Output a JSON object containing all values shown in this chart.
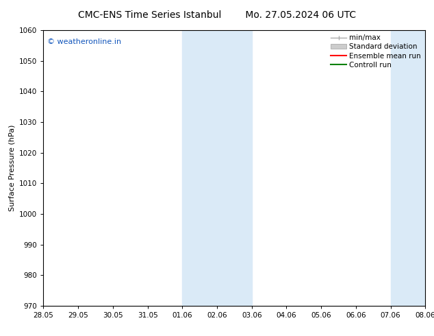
{
  "title_left": "CMC-ENS Time Series Istanbul",
  "title_right": "Mo. 27.05.2024 06 UTC",
  "ylabel": "Surface Pressure (hPa)",
  "ylim": [
    970,
    1060
  ],
  "yticks": [
    970,
    980,
    990,
    1000,
    1010,
    1020,
    1030,
    1040,
    1050,
    1060
  ],
  "xtick_labels": [
    "28.05",
    "29.05",
    "30.05",
    "31.05",
    "01.06",
    "02.06",
    "03.06",
    "04.06",
    "05.06",
    "06.06",
    "07.06",
    "08.06"
  ],
  "xlim": [
    0,
    11
  ],
  "shaded_regions": [
    {
      "x_start": 4,
      "x_end": 6
    },
    {
      "x_start": 10,
      "x_end": 11
    }
  ],
  "shaded_color": "#daeaf7",
  "watermark_text": "© weatheronline.in",
  "watermark_color": "#1155bb",
  "background_color": "#ffffff",
  "legend_entries": [
    {
      "label": "min/max"
    },
    {
      "label": "Standard deviation"
    },
    {
      "label": "Ensemble mean run",
      "color": "#ff0000"
    },
    {
      "label": "Controll run",
      "color": "#008000"
    }
  ],
  "title_fontsize": 10,
  "axis_label_fontsize": 8,
  "tick_fontsize": 7.5,
  "watermark_fontsize": 8,
  "legend_fontsize": 7.5
}
